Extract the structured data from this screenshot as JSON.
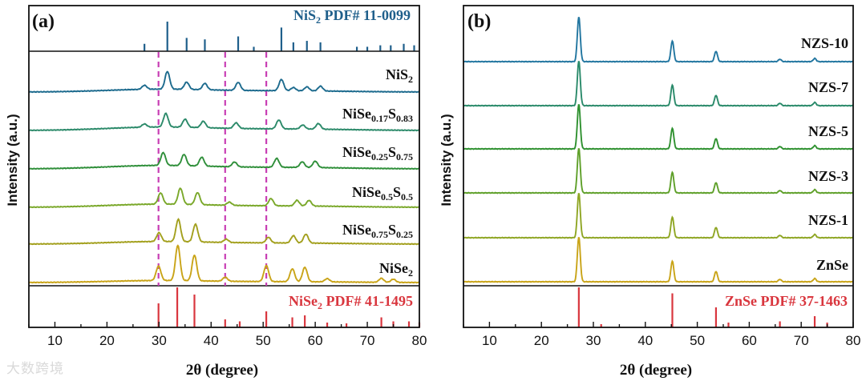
{
  "watermark": "大数跨境",
  "chart_data": [
    {
      "panel": "(a)",
      "type": "line",
      "xlabel": "2θ (degree)",
      "ylabel": "Intensity (a.u.)",
      "xlim": [
        5,
        80
      ],
      "xticks": [
        10,
        20,
        30,
        40,
        50,
        60,
        70,
        80
      ],
      "reference_top": {
        "label_main": "NiS",
        "label_sub": "2",
        "label_rest": " PDF# 11-0099",
        "color": "#1f5f8b",
        "peaks": [
          [
            27.2,
            0.25
          ],
          [
            31.6,
            1.0
          ],
          [
            35.3,
            0.45
          ],
          [
            38.8,
            0.4
          ],
          [
            45.2,
            0.5
          ],
          [
            48.2,
            0.15
          ],
          [
            53.5,
            0.8
          ],
          [
            55.8,
            0.3
          ],
          [
            58.4,
            0.35
          ],
          [
            61.0,
            0.3
          ],
          [
            68.0,
            0.15
          ],
          [
            70.0,
            0.15
          ],
          [
            72.5,
            0.2
          ],
          [
            74.5,
            0.2
          ],
          [
            77.0,
            0.25
          ],
          [
            79.0,
            0.2
          ]
        ]
      },
      "reference_bottom": {
        "label_main": "NiSe",
        "label_sub": "2",
        "label_rest": " PDF# 41-1495",
        "color": "#d9363e",
        "peaks": [
          [
            29.9,
            0.6
          ],
          [
            33.5,
            1.0
          ],
          [
            36.8,
            0.82
          ],
          [
            42.7,
            0.2
          ],
          [
            45.5,
            0.15
          ],
          [
            50.6,
            0.4
          ],
          [
            55.6,
            0.25
          ],
          [
            58.0,
            0.3
          ],
          [
            62.3,
            0.12
          ],
          [
            66.0,
            0.1
          ],
          [
            72.7,
            0.25
          ],
          [
            75.0,
            0.15
          ],
          [
            78.0,
            0.15
          ],
          [
            80.0,
            0.12
          ]
        ]
      },
      "guide_lines_x": [
        29.9,
        42.7,
        50.6
      ],
      "guide_color": "#c83fb4",
      "series": [
        {
          "name_main": "NiS",
          "name_sub1": "2",
          "name_mid": "",
          "name_sub2": "",
          "color": "#1d6b8e",
          "hump": 0.5,
          "peaks": [
            [
              27.2,
              5
            ],
            [
              31.6,
              22
            ],
            [
              35.3,
              9
            ],
            [
              38.8,
              8
            ],
            [
              45.2,
              10
            ],
            [
              53.5,
              14
            ],
            [
              55.8,
              4
            ],
            [
              58.4,
              5
            ],
            [
              61.0,
              6
            ]
          ]
        },
        {
          "name_main": "NiSe",
          "name_sub1": "0.17",
          "name_mid": "S",
          "name_sub2": "0.83",
          "color": "#2c8a6a",
          "hump": 0.6,
          "peaks": [
            [
              27.2,
              4
            ],
            [
              31.3,
              17
            ],
            [
              35.0,
              10
            ],
            [
              38.5,
              8
            ],
            [
              44.8,
              7
            ],
            [
              53.0,
              11
            ],
            [
              57.6,
              5
            ],
            [
              60.6,
              7
            ]
          ]
        },
        {
          "name_main": "NiSe",
          "name_sub1": "0.25",
          "name_mid": "S",
          "name_sub2": "0.75",
          "color": "#2f8f3a",
          "hump": 0.6,
          "peaks": [
            [
              30.8,
              16
            ],
            [
              34.8,
              14
            ],
            [
              38.2,
              11
            ],
            [
              44.5,
              6
            ],
            [
              52.6,
              11
            ],
            [
              57.5,
              7
            ],
            [
              60.0,
              8
            ]
          ]
        },
        {
          "name_main": "NiSe",
          "name_sub1": "0.5",
          "name_mid": "S",
          "name_sub2": "0.5",
          "color": "#7aa82a",
          "hump": 0.55,
          "peaks": [
            [
              30.3,
              14
            ],
            [
              34.1,
              20
            ],
            [
              37.4,
              15
            ],
            [
              43.5,
              4
            ],
            [
              51.5,
              9
            ],
            [
              56.5,
              7
            ],
            [
              58.8,
              7
            ]
          ]
        },
        {
          "name_main": "NiSe",
          "name_sub1": "0.75",
          "name_mid": "S",
          "name_sub2": "0.25",
          "color": "#a3a01e",
          "hump": 0.45,
          "peaks": [
            [
              30.0,
              11
            ],
            [
              33.7,
              28
            ],
            [
              37.0,
              22
            ],
            [
              42.9,
              4
            ],
            [
              51.0,
              7
            ],
            [
              55.8,
              9
            ],
            [
              58.2,
              11
            ]
          ]
        },
        {
          "name_main": "NiSe",
          "name_sub1": "2",
          "name_mid": "",
          "name_sub2": "",
          "color": "#c9a418",
          "hump": 0.35,
          "peaks": [
            [
              29.9,
              18
            ],
            [
              33.6,
              44
            ],
            [
              36.8,
              32
            ],
            [
              42.7,
              5
            ],
            [
              50.6,
              20
            ],
            [
              55.6,
              16
            ],
            [
              58.0,
              18
            ],
            [
              62.3,
              4
            ],
            [
              72.7,
              5
            ],
            [
              75.0,
              4
            ]
          ]
        }
      ]
    },
    {
      "panel": "(b)",
      "type": "line",
      "xlabel": "2θ (degree)",
      "ylabel": "Intensity (a.u.)",
      "xlim": [
        5,
        80
      ],
      "xticks": [
        10,
        20,
        30,
        40,
        50,
        60,
        70,
        80
      ],
      "reference_bottom": {
        "label": "ZnSe PDF# 37-1463",
        "color": "#d9363e",
        "peaks": [
          [
            27.2,
            1.0
          ],
          [
            31.5,
            0.08
          ],
          [
            45.2,
            0.85
          ],
          [
            53.6,
            0.5
          ],
          [
            56.0,
            0.12
          ],
          [
            65.9,
            0.15
          ],
          [
            72.6,
            0.28
          ],
          [
            75.0,
            0.12
          ]
        ]
      },
      "series": [
        {
          "name": "NZS-10",
          "color": "#2276a0",
          "peaks": [
            [
              27.2,
              56
            ],
            [
              45.2,
              26
            ],
            [
              53.6,
              13
            ],
            [
              65.9,
              3
            ],
            [
              72.6,
              4
            ]
          ]
        },
        {
          "name": "NZS-7",
          "color": "#2a8a6a",
          "peaks": [
            [
              27.2,
              56
            ],
            [
              45.2,
              26
            ],
            [
              53.6,
              13
            ],
            [
              65.9,
              3
            ],
            [
              72.6,
              4
            ]
          ]
        },
        {
          "name": "NZS-5",
          "color": "#2f9130",
          "peaks": [
            [
              27.2,
              56
            ],
            [
              45.2,
              26
            ],
            [
              53.6,
              13
            ],
            [
              65.9,
              3
            ],
            [
              72.6,
              4
            ]
          ]
        },
        {
          "name": "NZS-3",
          "color": "#5fa02a",
          "peaks": [
            [
              27.2,
              56
            ],
            [
              45.2,
              26
            ],
            [
              53.6,
              13
            ],
            [
              65.9,
              3
            ],
            [
              72.6,
              4
            ]
          ]
        },
        {
          "name": "NZS-1",
          "color": "#8fa624",
          "peaks": [
            [
              27.2,
              56
            ],
            [
              45.2,
              26
            ],
            [
              53.6,
              13
            ],
            [
              65.9,
              3
            ],
            [
              72.6,
              4
            ]
          ]
        },
        {
          "name": "ZnSe",
          "color": "#c9a418",
          "peaks": [
            [
              27.2,
              56
            ],
            [
              45.2,
              26
            ],
            [
              53.6,
              13
            ],
            [
              65.9,
              3
            ],
            [
              72.6,
              4
            ]
          ]
        }
      ]
    }
  ]
}
